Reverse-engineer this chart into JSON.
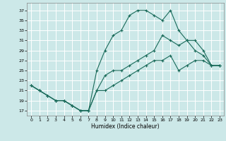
{
  "xlabel": "Humidex (Indice chaleur)",
  "background_color": "#cce8e8",
  "grid_color": "#ffffff",
  "line_color": "#1a6b5a",
  "xlim": [
    -0.5,
    23.5
  ],
  "ylim": [
    16,
    38.5
  ],
  "xticks": [
    0,
    1,
    2,
    3,
    4,
    5,
    6,
    7,
    8,
    9,
    10,
    11,
    12,
    13,
    14,
    15,
    16,
    17,
    18,
    19,
    20,
    21,
    22,
    23
  ],
  "yticks": [
    17,
    19,
    21,
    23,
    25,
    27,
    29,
    31,
    33,
    35,
    37
  ],
  "line_max_x": [
    0,
    1,
    2,
    3,
    4,
    5,
    6,
    7,
    8,
    9,
    10,
    11,
    12,
    13,
    14,
    15,
    16,
    17,
    18,
    19,
    20,
    21,
    22,
    23
  ],
  "line_max_y": [
    22,
    21,
    20,
    19,
    19,
    18,
    17,
    17,
    25,
    29,
    32,
    33,
    36,
    37,
    37,
    36,
    35,
    37,
    33,
    31,
    29,
    28,
    26,
    26
  ],
  "line_min_x": [
    0,
    1,
    2,
    3,
    4,
    5,
    6,
    7,
    8,
    9,
    10,
    11,
    12,
    13,
    14,
    15,
    16,
    17,
    18,
    19,
    20,
    21,
    22,
    23
  ],
  "line_min_y": [
    22,
    21,
    20,
    19,
    19,
    18,
    17,
    17,
    21,
    21,
    22,
    23,
    24,
    25,
    26,
    27,
    27,
    28,
    25,
    26,
    27,
    27,
    26,
    26
  ],
  "line_avg_x": [
    0,
    1,
    2,
    3,
    4,
    5,
    6,
    7,
    8,
    9,
    10,
    11,
    12,
    13,
    14,
    15,
    16,
    17,
    18,
    19,
    20,
    21,
    22,
    23
  ],
  "line_avg_y": [
    22,
    21,
    20,
    19,
    19,
    18,
    17,
    17,
    21,
    24,
    25,
    25,
    26,
    27,
    28,
    29,
    32,
    31,
    30,
    31,
    31,
    29,
    26,
    26
  ]
}
